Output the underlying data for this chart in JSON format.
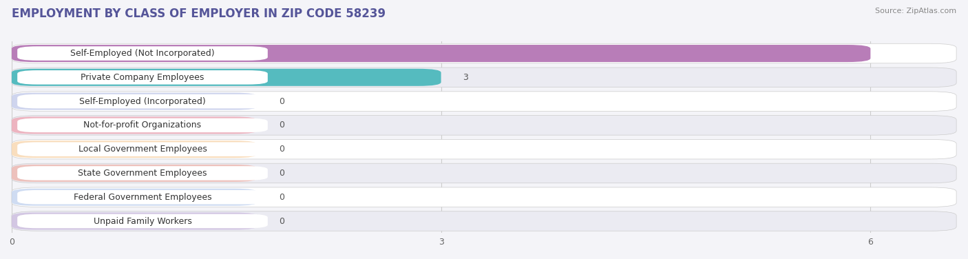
{
  "title": "EMPLOYMENT BY CLASS OF EMPLOYER IN ZIP CODE 58239",
  "source": "Source: ZipAtlas.com",
  "categories": [
    "Self-Employed (Not Incorporated)",
    "Private Company Employees",
    "Self-Employed (Incorporated)",
    "Not-for-profit Organizations",
    "Local Government Employees",
    "State Government Employees",
    "Federal Government Employees",
    "Unpaid Family Workers"
  ],
  "values": [
    6,
    3,
    0,
    0,
    0,
    0,
    0,
    0
  ],
  "bar_colors": [
    "#b87db8",
    "#55bbbf",
    "#a8b4e0",
    "#f08898",
    "#f5c48a",
    "#f0a090",
    "#a8c0e8",
    "#c0aad8"
  ],
  "xlim_max": 6.6,
  "xticks": [
    0,
    3,
    6
  ],
  "bg_color": "#f4f4f8",
  "row_light": "#ffffff",
  "row_dark": "#ebebf2",
  "title_fontsize": 12,
  "value_fontsize": 9,
  "label_fontsize": 9
}
